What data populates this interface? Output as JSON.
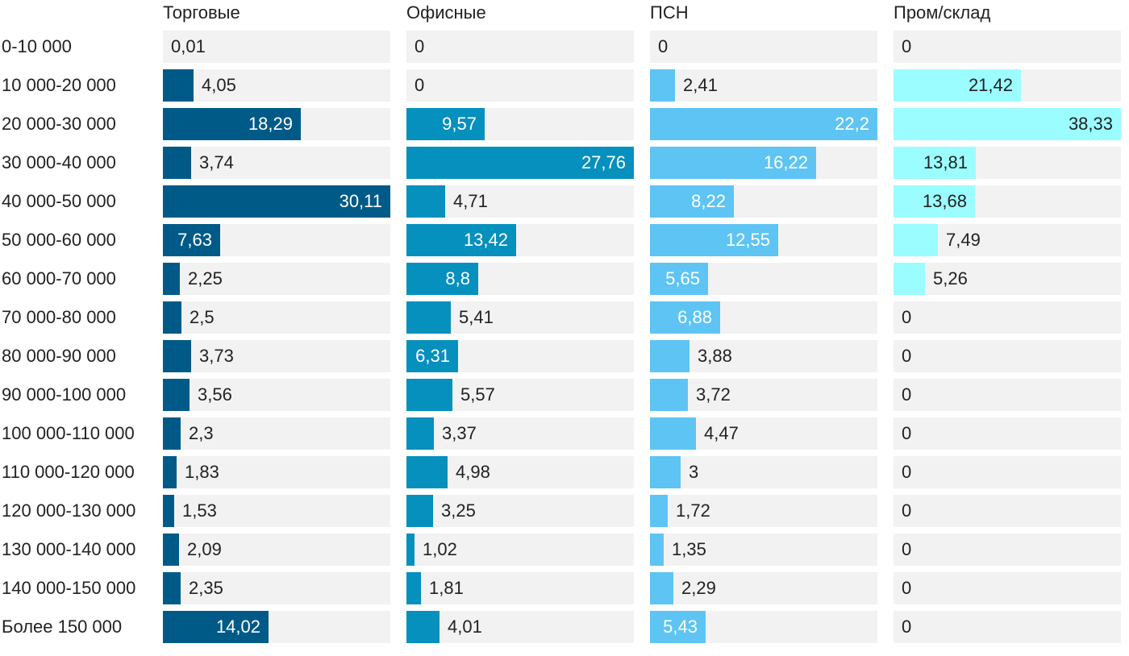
{
  "chart_data": {
    "type": "bar",
    "orientation": "horizontal",
    "layout": "small-multiples",
    "categories": [
      "0-10 000",
      "10 000-20 000",
      "20 000-30 000",
      "30 000-40 000",
      "40 000-50 000",
      "50 000-60 000",
      "60 000-70 000",
      "70 000-80 000",
      "80 000-90 000",
      "90 000-100 000",
      "100 000-110 000",
      "110 000-120 000",
      "120 000-130 000",
      "130 000-140 000",
      "140 000-150 000",
      "Более 150 000"
    ],
    "series": [
      {
        "name": "Торговые",
        "color": "#005a87",
        "values": [
          0.01,
          4.05,
          18.29,
          3.74,
          30.11,
          7.63,
          2.25,
          2.5,
          3.73,
          3.56,
          2.3,
          1.83,
          1.53,
          2.09,
          2.35,
          14.02
        ],
        "labels": [
          "0,01",
          "4,05",
          "18,29",
          "3,74",
          "30,11",
          "7,63",
          "2,25",
          "2,5",
          "3,73",
          "3,56",
          "2,3",
          "1,83",
          "1,53",
          "2,09",
          "2,35",
          "14,02"
        ]
      },
      {
        "name": "Офисные",
        "color": "#0690be",
        "values": [
          0,
          0,
          9.57,
          27.76,
          4.71,
          13.42,
          8.8,
          5.41,
          6.31,
          5.57,
          3.37,
          4.98,
          3.25,
          1.02,
          1.81,
          4.01
        ],
        "labels": [
          "0",
          "0",
          "9,57",
          "27,76",
          "4,71",
          "13,42",
          "8,8",
          "5,41",
          "6,31",
          "5,57",
          "3,37",
          "4,98",
          "3,25",
          "1,02",
          "1,81",
          "4,01"
        ]
      },
      {
        "name": "ПСН",
        "color": "#5ec4f4",
        "values": [
          0,
          2.41,
          22.2,
          16.22,
          8.22,
          12.55,
          5.65,
          6.88,
          3.88,
          3.72,
          4.47,
          3,
          1.72,
          1.35,
          2.29,
          5.43
        ],
        "labels": [
          "0",
          "2,41",
          "22,2",
          "16,22",
          "8,22",
          "12,55",
          "5,65",
          "6,88",
          "3,88",
          "3,72",
          "4,47",
          "3",
          "1,72",
          "1,35",
          "2,29",
          "5,43"
        ]
      },
      {
        "name": "Пром/склад",
        "color": "#9bfdff",
        "values": [
          0,
          21.42,
          38.33,
          13.81,
          13.68,
          7.49,
          5.26,
          0,
          0,
          0,
          0,
          0,
          0,
          0,
          0,
          0
        ],
        "labels": [
          "0",
          "21,42",
          "38,33",
          "13,81",
          "13,68",
          "7,49",
          "5,26",
          "0",
          "0",
          "0",
          "0",
          "0",
          "0",
          "0",
          "0",
          "0"
        ]
      }
    ],
    "title": "",
    "xlabel": "",
    "ylabel": "",
    "grid": false,
    "legend": "none"
  }
}
